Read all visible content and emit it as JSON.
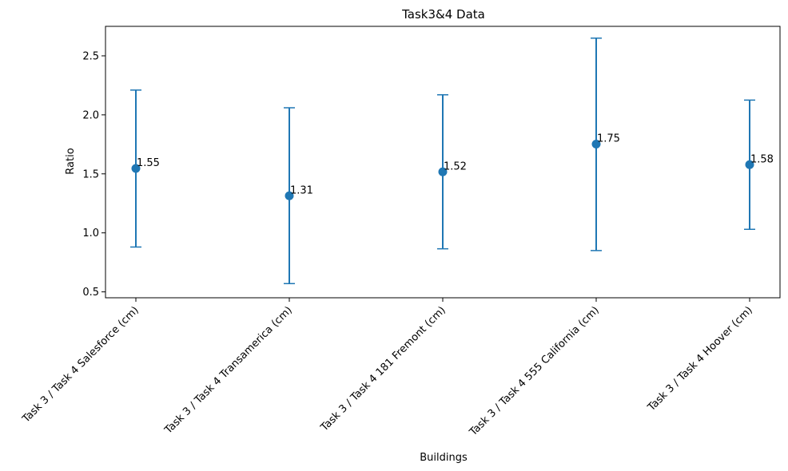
{
  "chart_data": {
    "type": "scatter",
    "title": "Task3&4 Data",
    "xlabel": "Buildings",
    "ylabel": "Ratio",
    "categories": [
      "Task 3 / Task 4 Salesforce (cm)",
      "Task 3 / Task 4 Transamerica (cm)",
      "Task 3 / Task 4 181 Fremont (cm)",
      "Task 3 / Task 4 555 California (cm)",
      "Task 3 / Task 4 Hoover (cm)"
    ],
    "values": [
      1.546,
      1.314,
      1.517,
      1.752,
      1.578
    ],
    "value_labels": [
      "1.55",
      "1.31",
      "1.52",
      "1.75",
      "1.58"
    ],
    "error_low": [
      0.88,
      0.57,
      0.865,
      0.85,
      1.03
    ],
    "error_high": [
      2.21,
      2.06,
      2.17,
      2.65,
      2.125
    ],
    "ylim": [
      0.45,
      2.75
    ],
    "yticks": [
      0.5,
      1.0,
      1.5,
      2.0,
      2.5
    ],
    "ytick_labels": [
      "0.5",
      "1.0",
      "1.5",
      "2.0",
      "2.5"
    ],
    "grid": false,
    "colors": {
      "series": "#1f77b4"
    }
  }
}
